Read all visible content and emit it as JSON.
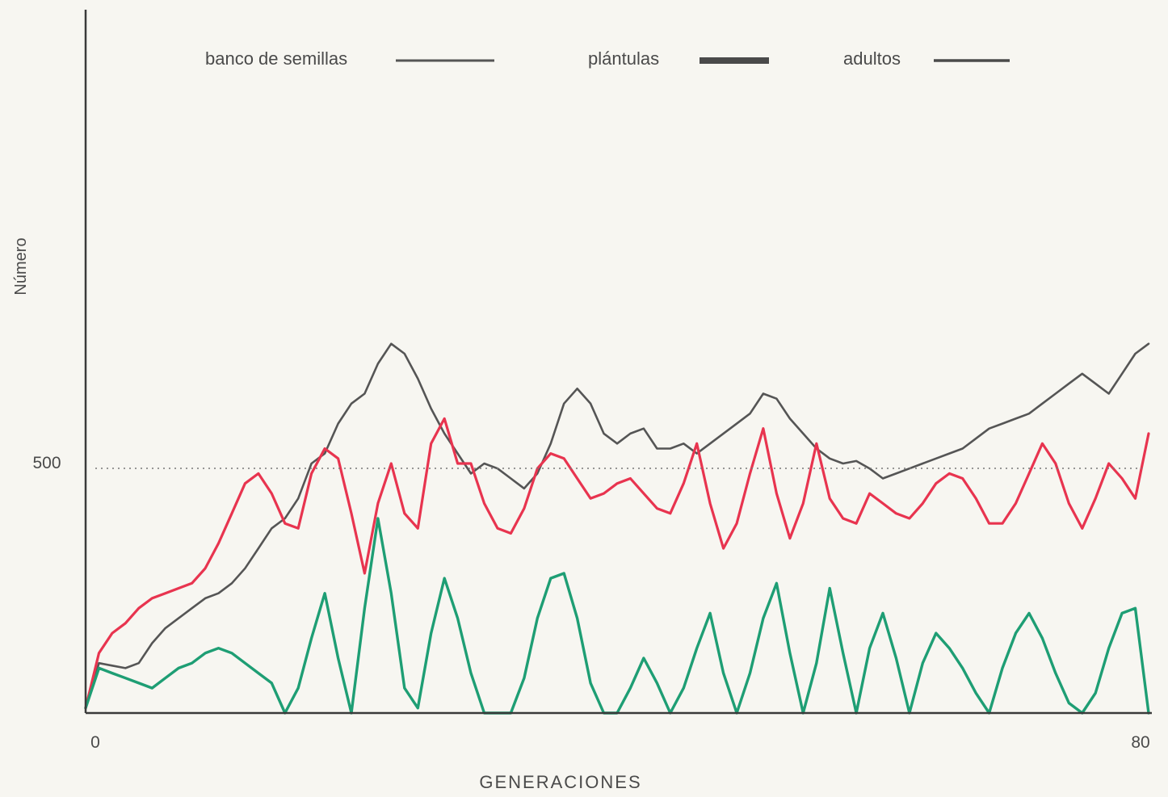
{
  "chart_data": {
    "type": "line",
    "xlabel": "GENERACIONES",
    "ylabel": "Número",
    "xlim": [
      0,
      80
    ],
    "ylim": [
      0,
      1000
    ],
    "xticks": [
      {
        "value": 0,
        "label": "0"
      },
      {
        "value": 80,
        "label": "80"
      }
    ],
    "yticks": [
      {
        "value": 500,
        "label": "500"
      }
    ],
    "reference_line": {
      "y": 500,
      "style": "dotted"
    },
    "grid": false,
    "legend_position": "top",
    "series": [
      {
        "name": "banco de semillas",
        "color": "#555555",
        "x": [
          0,
          1,
          2,
          3,
          4,
          5,
          6,
          7,
          8,
          9,
          10,
          11,
          12,
          13,
          14,
          15,
          16,
          17,
          18,
          19,
          20,
          21,
          22,
          23,
          24,
          25,
          26,
          27,
          28,
          29,
          30,
          31,
          32,
          33,
          34,
          35,
          36,
          37,
          38,
          39,
          40,
          41,
          42,
          43,
          44,
          45,
          46,
          47,
          48,
          49,
          50,
          51,
          52,
          53,
          54,
          55,
          56,
          57,
          58,
          59,
          60,
          61,
          62,
          63,
          64,
          65,
          66,
          67,
          68,
          69,
          70,
          71,
          72,
          73,
          74,
          75,
          76,
          77,
          78,
          79,
          80
        ],
        "y": [
          10,
          100,
          95,
          90,
          100,
          140,
          170,
          190,
          210,
          230,
          240,
          260,
          290,
          330,
          370,
          390,
          430,
          500,
          520,
          580,
          620,
          640,
          700,
          740,
          720,
          670,
          610,
          560,
          520,
          480,
          500,
          490,
          470,
          450,
          480,
          540,
          620,
          650,
          620,
          560,
          540,
          560,
          570,
          530,
          530,
          540,
          520,
          540,
          560,
          580,
          600,
          640,
          630,
          590,
          560,
          530,
          510,
          500,
          505,
          490,
          470,
          480,
          490,
          500,
          510,
          520,
          530,
          550,
          570,
          580,
          590,
          600,
          620,
          640,
          660,
          680,
          660,
          640,
          680,
          720,
          740
        ]
      },
      {
        "name": "plántulas",
        "color": "#e8344f",
        "x": [
          0,
          1,
          2,
          3,
          4,
          5,
          6,
          7,
          8,
          9,
          10,
          11,
          12,
          13,
          14,
          15,
          16,
          17,
          18,
          19,
          20,
          21,
          22,
          23,
          24,
          25,
          26,
          27,
          28,
          29,
          30,
          31,
          32,
          33,
          34,
          35,
          36,
          37,
          38,
          39,
          40,
          41,
          42,
          43,
          44,
          45,
          46,
          47,
          48,
          49,
          50,
          51,
          52,
          53,
          54,
          55,
          56,
          57,
          58,
          59,
          60,
          61,
          62,
          63,
          64,
          65,
          66,
          67,
          68,
          69,
          70,
          71,
          72,
          73,
          74,
          75,
          76,
          77,
          78,
          79,
          80
        ],
        "y": [
          10,
          120,
          160,
          180,
          210,
          230,
          240,
          250,
          260,
          290,
          340,
          400,
          460,
          480,
          440,
          380,
          370,
          480,
          530,
          510,
          400,
          280,
          420,
          500,
          400,
          370,
          540,
          590,
          500,
          500,
          420,
          370,
          360,
          410,
          490,
          520,
          510,
          470,
          430,
          440,
          460,
          470,
          440,
          410,
          400,
          460,
          540,
          420,
          330,
          380,
          480,
          570,
          440,
          350,
          420,
          540,
          430,
          390,
          380,
          440,
          420,
          400,
          390,
          420,
          460,
          480,
          470,
          430,
          380,
          380,
          420,
          480,
          540,
          500,
          420,
          370,
          430,
          500,
          470,
          430,
          560
        ]
      },
      {
        "name": "adultos",
        "color": "#1e9e74",
        "x": [
          0,
          1,
          2,
          3,
          4,
          5,
          6,
          7,
          8,
          9,
          10,
          11,
          12,
          13,
          14,
          15,
          16,
          17,
          18,
          19,
          20,
          21,
          22,
          23,
          24,
          25,
          26,
          27,
          28,
          29,
          30,
          31,
          32,
          33,
          34,
          35,
          36,
          37,
          38,
          39,
          40,
          41,
          42,
          43,
          44,
          45,
          46,
          47,
          48,
          49,
          50,
          51,
          52,
          53,
          54,
          55,
          56,
          57,
          58,
          59,
          60,
          61,
          62,
          63,
          64,
          65,
          66,
          67,
          68,
          69,
          70,
          71,
          72,
          73,
          74,
          75,
          76,
          77,
          78,
          79,
          80
        ],
        "y": [
          10,
          90,
          80,
          70,
          60,
          50,
          70,
          90,
          100,
          120,
          130,
          120,
          100,
          80,
          60,
          0,
          50,
          150,
          240,
          110,
          0,
          210,
          390,
          240,
          50,
          10,
          160,
          270,
          190,
          80,
          0,
          0,
          0,
          70,
          190,
          270,
          280,
          190,
          60,
          0,
          0,
          50,
          110,
          60,
          0,
          50,
          130,
          200,
          80,
          0,
          80,
          190,
          260,
          120,
          0,
          100,
          250,
          120,
          0,
          130,
          200,
          110,
          0,
          100,
          160,
          130,
          90,
          40,
          0,
          90,
          160,
          200,
          150,
          80,
          20,
          0,
          40,
          130,
          200,
          210,
          0
        ]
      }
    ]
  }
}
